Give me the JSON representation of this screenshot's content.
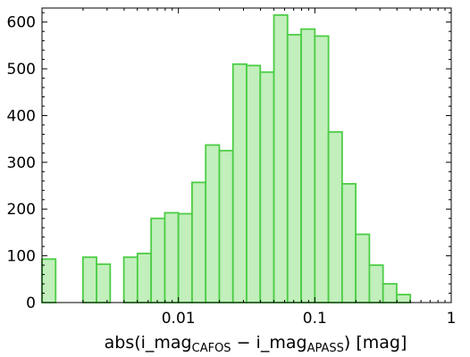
{
  "chart_data": {
    "type": "bar",
    "title": "",
    "xlabel_parts": [
      "abs(i_mag",
      "CAFOS",
      " − i_mag",
      "APASS",
      ") [mag]"
    ],
    "xscale": "log",
    "xlim": [
      0.001,
      1
    ],
    "ylim": [
      0,
      630
    ],
    "x_ticks": [
      {
        "value": 0.01,
        "label": "0.01"
      },
      {
        "value": 0.1,
        "label": "0.1"
      },
      {
        "value": 1,
        "label": "1"
      }
    ],
    "y_ticks": [
      {
        "value": 0,
        "label": "0"
      },
      {
        "value": 100,
        "label": "100"
      },
      {
        "value": 200,
        "label": "200"
      },
      {
        "value": 300,
        "label": "300"
      },
      {
        "value": 400,
        "label": "400"
      },
      {
        "value": 500,
        "label": "500"
      },
      {
        "value": 600,
        "label": "600"
      }
    ],
    "bin_edges_log10": [
      -3.0,
      -2.9,
      -2.8,
      -2.7,
      -2.6,
      -2.5,
      -2.4,
      -2.3,
      -2.2,
      -2.1,
      -2.0,
      -1.9,
      -1.8,
      -1.7,
      -1.6,
      -1.5,
      -1.4,
      -1.3,
      -1.2,
      -1.1,
      -1.0,
      -0.9,
      -0.8,
      -0.7,
      -0.6,
      -0.5,
      -0.4,
      -0.3
    ],
    "counts": [
      93,
      0,
      0,
      97,
      82,
      0,
      97,
      105,
      180,
      192,
      190,
      257,
      337,
      325,
      510,
      507,
      493,
      615,
      573,
      585,
      570,
      365,
      254,
      146,
      80,
      40,
      17,
      5
    ],
    "bar_fill": "#c2efbc",
    "bar_stroke": "#4ccd45",
    "grid": false
  }
}
